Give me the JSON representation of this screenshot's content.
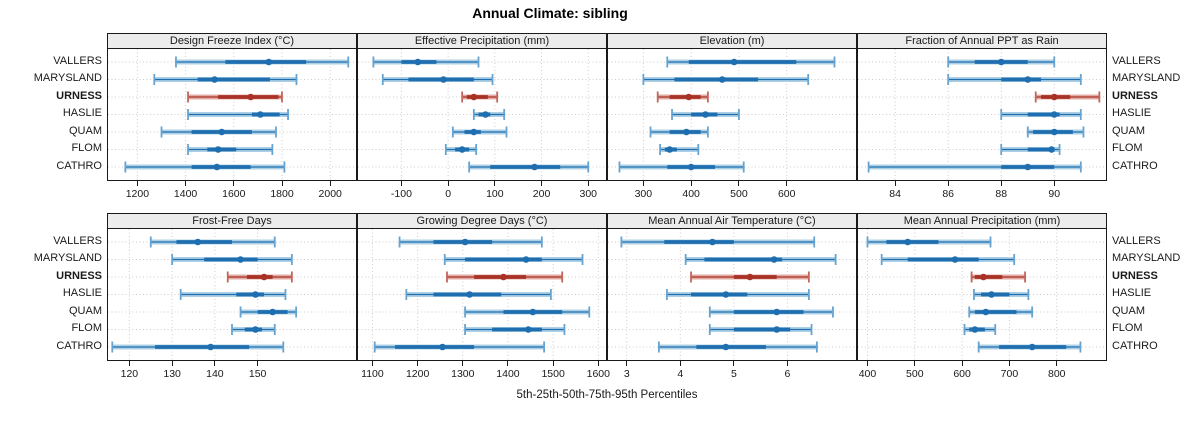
{
  "title": "Annual Climate: sibling",
  "xlabel": "5th-25th-50th-75th-95th Percentiles",
  "sites": [
    "VALLERS",
    "MARYSLAND",
    "URNESS",
    "HASLIE",
    "QUAM",
    "FLOM",
    "CATHRO"
  ],
  "highlight_site": "URNESS",
  "colors": {
    "blue_dark": "#1f6fb0",
    "blue_pale": "#aed0e6",
    "blue_cap": "#66a3d0",
    "red_dark": "#a93226",
    "red_pale": "#e2aba4",
    "red_cap": "#c2665c",
    "grid": "#cccccc",
    "strip_bg": "#ececec",
    "border": "#1a1a1a"
  },
  "chart_data": {
    "type": "dotplot-percentile-trellis",
    "layout": {
      "rows": 2,
      "cols": 4,
      "grid": "dotted",
      "axes": "bottom-of-each-row"
    },
    "percentile_labels": [
      "5th",
      "25th",
      "50th",
      "75th",
      "95th"
    ],
    "series_order": [
      "VALLERS",
      "MARYSLAND",
      "URNESS",
      "HASLIE",
      "QUAM",
      "FLOM",
      "CATHRO"
    ],
    "panels": [
      {
        "strip": "Design Freeze Index (°C)",
        "xlim": [
          1078,
          2107
        ],
        "ticks": [
          1200,
          1400,
          1600,
          1800,
          2000
        ],
        "values": [
          [
            1360,
            1565,
            1745,
            1900,
            2075
          ],
          [
            1270,
            1450,
            1520,
            1750,
            1860
          ],
          [
            1410,
            1535,
            1670,
            1785,
            1800
          ],
          [
            1410,
            1675,
            1710,
            1790,
            1825
          ],
          [
            1300,
            1425,
            1550,
            1675,
            1775
          ],
          [
            1410,
            1490,
            1535,
            1610,
            1760
          ],
          [
            1150,
            1425,
            1530,
            1670,
            1810
          ]
        ]
      },
      {
        "strip": "Effective Precipitation (mm)",
        "xlim": [
          -193,
          338
        ],
        "ticks": [
          -100,
          0,
          100,
          200,
          300
        ],
        "values": [
          [
            -160,
            -100,
            -65,
            -25,
            65
          ],
          [
            -140,
            -85,
            -10,
            55,
            95
          ],
          [
            30,
            40,
            55,
            85,
            105
          ],
          [
            55,
            65,
            80,
            90,
            120
          ],
          [
            10,
            35,
            55,
            70,
            125
          ],
          [
            -5,
            15,
            30,
            45,
            60
          ],
          [
            45,
            90,
            185,
            240,
            300
          ]
        ]
      },
      {
        "strip": "Elevation (m)",
        "xlim": [
          226,
          745
        ],
        "ticks": [
          300,
          400,
          500,
          600
        ],
        "values": [
          [
            350,
            395,
            490,
            620,
            700
          ],
          [
            300,
            365,
            465,
            540,
            645
          ],
          [
            330,
            355,
            395,
            420,
            435
          ],
          [
            360,
            400,
            430,
            455,
            500
          ],
          [
            315,
            355,
            390,
            420,
            435
          ],
          [
            335,
            345,
            355,
            370,
            415
          ],
          [
            250,
            350,
            400,
            450,
            510
          ]
        ]
      },
      {
        "strip": "Fraction of Annual PPT as Rain",
        "xlim": [
          82.6,
          91.95
        ],
        "ticks": [
          84,
          86,
          88,
          90
        ],
        "values": [
          [
            86,
            87,
            88,
            89,
            90
          ],
          [
            86,
            88,
            89,
            89.5,
            91
          ],
          [
            89.3,
            89.5,
            90,
            90.6,
            91.7
          ],
          [
            88,
            89,
            90,
            90.2,
            91
          ],
          [
            89,
            89.2,
            90,
            90.7,
            91.1
          ],
          [
            88,
            89,
            89.9,
            90,
            90.2
          ],
          [
            83,
            88,
            89,
            90,
            91
          ]
        ]
      },
      {
        "strip": "Frost-Free Days",
        "xlim": [
          115,
          173
        ],
        "ticks": [
          120,
          130,
          140,
          150
        ],
        "values": [
          [
            125,
            131,
            136,
            144,
            154
          ],
          [
            130,
            137.5,
            146,
            150,
            158
          ],
          [
            143,
            147.5,
            151.5,
            153.5,
            158
          ],
          [
            132,
            145,
            149.5,
            151.5,
            156.5
          ],
          [
            146,
            150,
            153.5,
            157,
            159
          ],
          [
            144,
            147,
            149.5,
            151,
            154
          ],
          [
            116,
            126,
            139,
            148,
            156
          ]
        ]
      },
      {
        "strip": "Growing Degree Days (°C)",
        "xlim": [
          1068,
          1617
        ],
        "ticks": [
          1100,
          1200,
          1300,
          1400,
          1500,
          1600
        ],
        "values": [
          [
            1160,
            1235,
            1305,
            1365,
            1475
          ],
          [
            1260,
            1305,
            1440,
            1475,
            1565
          ],
          [
            1265,
            1325,
            1390,
            1440,
            1520
          ],
          [
            1175,
            1235,
            1315,
            1385,
            1495
          ],
          [
            1305,
            1390,
            1455,
            1520,
            1580
          ],
          [
            1305,
            1365,
            1445,
            1475,
            1525
          ],
          [
            1105,
            1150,
            1255,
            1325,
            1480
          ]
        ]
      },
      {
        "strip": "Mean Annual Air Temperature (°C)",
        "xlim": [
          2.65,
          7.28
        ],
        "ticks": [
          3,
          4,
          5,
          6
        ],
        "values": [
          [
            2.9,
            3.7,
            4.6,
            5.0,
            6.5
          ],
          [
            4.1,
            4.45,
            5.75,
            5.9,
            6.9
          ],
          [
            4.2,
            5.0,
            5.3,
            5.8,
            6.4
          ],
          [
            3.75,
            4.2,
            4.85,
            5.25,
            6.4
          ],
          [
            4.55,
            5.0,
            5.8,
            6.3,
            6.85
          ],
          [
            4.55,
            5.0,
            5.8,
            6.05,
            6.45
          ],
          [
            3.6,
            4.3,
            4.85,
            5.6,
            6.55
          ]
        ]
      },
      {
        "strip": "Mean Annual Precipitation (mm)",
        "xlim": [
          380,
          904
        ],
        "ticks": [
          400,
          500,
          600,
          700,
          800
        ],
        "values": [
          [
            400,
            440,
            485,
            550,
            660
          ],
          [
            430,
            485,
            585,
            635,
            710
          ],
          [
            620,
            627,
            645,
            685,
            733
          ],
          [
            625,
            640,
            662,
            700,
            740
          ],
          [
            615,
            627,
            650,
            715,
            748
          ],
          [
            605,
            615,
            627,
            648,
            670
          ],
          [
            635,
            678,
            748,
            820,
            850
          ]
        ]
      }
    ]
  }
}
